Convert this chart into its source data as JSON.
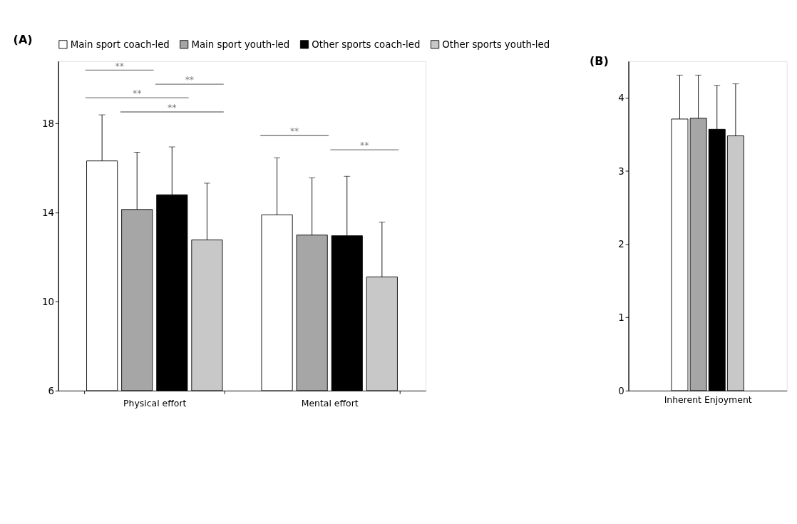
{
  "chart_data": [
    {
      "type": "bar",
      "title": "(A)",
      "categories": [
        "Physical effort",
        "Mental effort"
      ],
      "ylim": [
        6,
        20.8
      ],
      "yticks": [
        6,
        10,
        14,
        18
      ],
      "grid": false,
      "legend": "top",
      "series": [
        {
          "name": "Main sport coach-led",
          "color": "#ffffff",
          "values": [
            16.32,
            13.9
          ],
          "errors": [
            2.07,
            2.56
          ]
        },
        {
          "name": "Main sport youth-led",
          "color": "#a6a6a6",
          "values": [
            14.14,
            12.99
          ],
          "errors": [
            2.57,
            2.57
          ]
        },
        {
          "name": "Other sports coach-led",
          "color": "#000000",
          "values": [
            14.8,
            12.96
          ],
          "errors": [
            2.15,
            2.67
          ]
        },
        {
          "name": "Other sports youth-led",
          "color": "#c8c8c8",
          "values": [
            12.77,
            11.11
          ],
          "errors": [
            2.55,
            2.46
          ]
        }
      ],
      "annotations": [
        "**",
        "**",
        "**",
        "**",
        "**",
        "**"
      ]
    },
    {
      "type": "bar",
      "title": "(B)",
      "categories": [
        "Inherent Enjoyment"
      ],
      "ylim": [
        0,
        4.5
      ],
      "yticks": [
        0,
        1,
        2,
        3,
        4
      ],
      "grid": false,
      "legend": false,
      "series": [
        {
          "color": "#ffffff",
          "values": [
            3.71
          ],
          "errors": [
            0.6
          ]
        },
        {
          "color": "#a6a6a6",
          "values": [
            3.72
          ],
          "errors": [
            0.59
          ]
        },
        {
          "color": "#000000",
          "values": [
            3.57
          ],
          "errors": [
            0.6
          ]
        },
        {
          "color": "#c8c8c8",
          "values": [
            3.48
          ],
          "errors": [
            0.71
          ]
        }
      ]
    }
  ]
}
